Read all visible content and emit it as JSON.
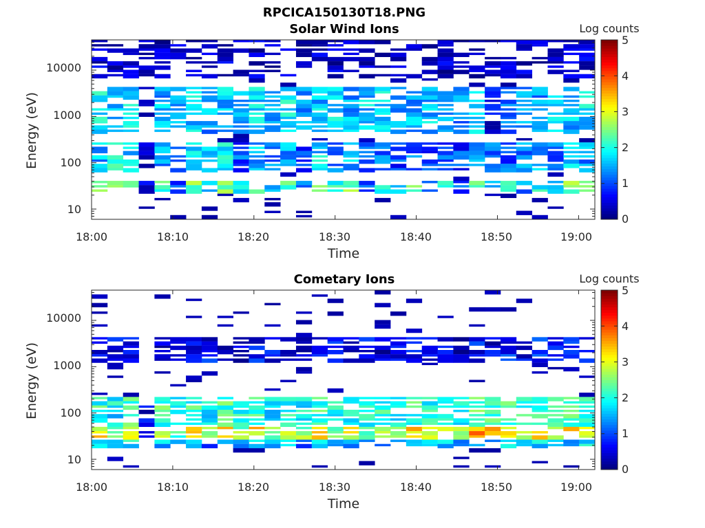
{
  "figure": {
    "title": "RPCICA150130T18.PNG"
  },
  "chart_data": [
    {
      "type": "heatmap",
      "title": "Solar Wind Ions",
      "xlabel": "Time",
      "ylabel": "Energy (eV)",
      "x_ticks": [
        "18:00",
        "18:10",
        "18:20",
        "18:30",
        "18:40",
        "18:50",
        "19:00"
      ],
      "y_ticks": [
        "10",
        "100",
        "1000",
        "10000"
      ],
      "xlim": [
        "18:00",
        "19:02"
      ],
      "ylim": [
        6,
        45000
      ],
      "y_scale": "log",
      "colorbar": {
        "label": "Log counts",
        "ticks": [
          "0",
          "1",
          "2",
          "3",
          "4",
          "5"
        ],
        "range": [
          0,
          5
        ],
        "colormap": "jet"
      },
      "columns": 32,
      "x": [
        "18:00",
        "18:02",
        "18:04",
        "18:06",
        "18:08",
        "18:10",
        "18:12",
        "18:14",
        "18:16",
        "18:18",
        "18:20",
        "18:22",
        "18:24",
        "18:26",
        "18:28",
        "18:30",
        "18:32",
        "18:34",
        "18:36",
        "18:38",
        "18:40",
        "18:42",
        "18:44",
        "18:46",
        "18:48",
        "18:50",
        "18:52",
        "18:54",
        "18:56",
        "18:58",
        "19:00",
        "19:02"
      ],
      "bands": [
        {
          "energy_range": [
            20,
            40
          ],
          "log_counts": [
            2.6,
            2.3,
            2.8,
            0.6,
            2.2,
            1.0,
            2.4,
            1.6,
            2.5,
            1.8,
            2.7,
            1.4,
            2.3,
            1.1,
            2.6,
            1.9,
            2.4,
            1.2,
            2.1,
            1.5,
            2.3,
            1.3,
            1.9,
            1.1,
            2.5,
            1.6,
            2.2,
            1.2,
            2.0,
            1.5,
            2.4,
            2.2
          ]
        },
        {
          "energy_range": [
            60,
            300
          ],
          "log_counts": [
            1.5,
            1.9,
            1.6,
            0.4,
            1.3,
            0.8,
            1.6,
            1.4,
            1.8,
            1.0,
            1.5,
            1.2,
            1.4,
            0.9,
            1.7,
            1.3,
            1.5,
            1.1,
            1.2,
            0.9,
            1.1,
            0.8,
            1.0,
            0.9,
            1.4,
            1.2,
            1.1,
            1.3,
            1.5,
            1.2,
            1.6,
            1.4
          ]
        },
        {
          "energy_range": [
            450,
            4500
          ],
          "log_counts": [
            1.9,
            1.7,
            1.8,
            0.0,
            1.5,
            1.6,
            1.7,
            1.4,
            1.6,
            1.5,
            1.7,
            1.6,
            1.8,
            1.4,
            1.6,
            1.7,
            1.5,
            1.6,
            1.7,
            1.4,
            1.5,
            1.6,
            1.3,
            1.2,
            1.6,
            0.6,
            1.3,
            1.5,
            1.4,
            1.6,
            1.5,
            1.7
          ]
        },
        {
          "energy_range": [
            7000,
            45000
          ],
          "log_counts": [
            0.3,
            0.2,
            0.3,
            0.2,
            0.2,
            0.3,
            0.3,
            0.2,
            0.3,
            0.2,
            0.3,
            0.3,
            0.2,
            0.2,
            0.3,
            0.3,
            0.2,
            0.3,
            0.2,
            0.2,
            0.3,
            0.2,
            0.3,
            0.2,
            0.3,
            0.2,
            0.3,
            0.3,
            0.2,
            0.2,
            0.3,
            0.3
          ]
        }
      ]
    },
    {
      "type": "heatmap",
      "title": "Cometary Ions",
      "xlabel": "Time",
      "ylabel": "Energy (eV)",
      "x_ticks": [
        "18:00",
        "18:10",
        "18:20",
        "18:30",
        "18:40",
        "18:50",
        "19:00"
      ],
      "y_ticks": [
        "10",
        "100",
        "1000",
        "10000"
      ],
      "xlim": [
        "18:00",
        "19:02"
      ],
      "ylim": [
        6,
        45000
      ],
      "y_scale": "log",
      "colorbar": {
        "label": "Log counts",
        "ticks": [
          "0",
          "1",
          "2",
          "3",
          "4",
          "5"
        ],
        "range": [
          0,
          5
        ],
        "colormap": "jet"
      },
      "columns": 32,
      "x": [
        "18:00",
        "18:02",
        "18:04",
        "18:06",
        "18:08",
        "18:10",
        "18:12",
        "18:14",
        "18:16",
        "18:18",
        "18:20",
        "18:22",
        "18:24",
        "18:26",
        "18:28",
        "18:30",
        "18:32",
        "18:34",
        "18:36",
        "18:38",
        "18:40",
        "18:42",
        "18:44",
        "18:46",
        "18:48",
        "18:50",
        "18:52",
        "18:54",
        "18:56",
        "18:58",
        "19:00",
        "19:02"
      ],
      "bands": [
        {
          "energy_range": [
            18,
            25
          ],
          "log_counts": [
            1.6,
            1.4,
            1.8,
            1.0,
            1.5,
            1.3,
            1.6,
            1.2,
            1.7,
            1.4,
            1.6,
            1.3,
            1.5,
            1.2,
            1.7,
            1.5,
            1.4,
            1.6,
            1.3,
            1.5,
            1.4,
            1.6,
            1.7,
            1.3,
            1.8,
            1.5,
            1.6,
            1.4,
            1.7,
            1.6,
            1.5,
            1.8
          ]
        },
        {
          "energy_range": [
            25,
            50
          ],
          "log_counts": [
            3.1,
            2.4,
            3.0,
            0.6,
            3.0,
            2.3,
            3.1,
            2.4,
            3.2,
            2.5,
            3.2,
            2.4,
            3.0,
            2.5,
            3.1,
            2.6,
            3.0,
            2.5,
            2.9,
            2.6,
            3.2,
            2.8,
            3.0,
            2.9,
            3.6,
            3.3,
            3.2,
            3.0,
            3.5,
            3.1,
            3.3,
            3.2
          ]
        },
        {
          "energy_range": [
            50,
            200
          ],
          "log_counts": [
            2.1,
            1.8,
            2.2,
            0.5,
            2.2,
            1.7,
            2.1,
            1.8,
            2.2,
            1.9,
            2.1,
            1.8,
            2.0,
            1.8,
            2.2,
            1.9,
            2.0,
            1.9,
            2.0,
            1.9,
            2.1,
            2.0,
            2.1,
            2.0,
            2.4,
            2.2,
            2.2,
            2.1,
            2.3,
            2.1,
            2.2,
            2.1
          ]
        },
        {
          "energy_range": [
            1200,
            4500
          ],
          "log_counts": [
            0.7,
            0.5,
            0.6,
            0.0,
            0.5,
            0.6,
            0.5,
            0.6,
            0.5,
            0.4,
            0.6,
            0.5,
            0.6,
            0.4,
            0.5,
            0.6,
            0.5,
            0.6,
            0.4,
            0.5,
            0.6,
            0.5,
            0.6,
            0.4,
            0.7,
            0.5,
            0.8,
            0.6,
            0.9,
            0.6,
            0.8,
            0.7
          ]
        }
      ]
    }
  ]
}
